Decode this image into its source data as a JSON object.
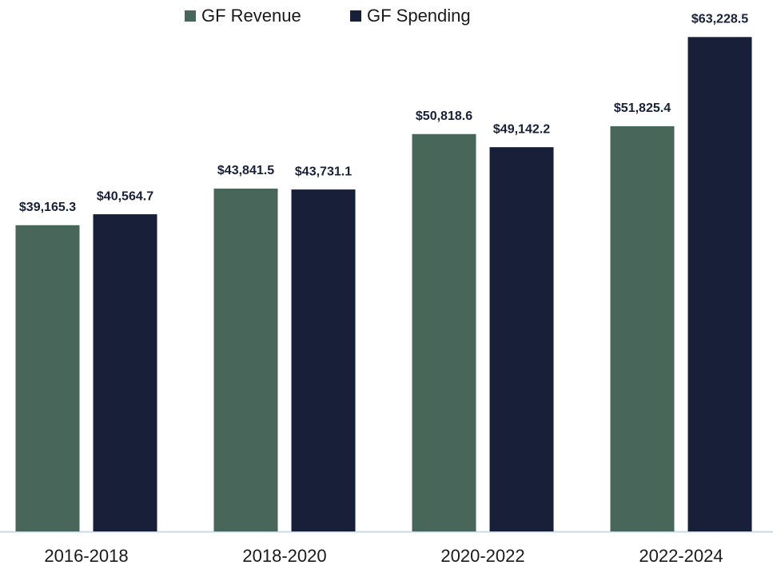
{
  "chart_data": {
    "type": "bar",
    "categories": [
      "2016-2018",
      "2018-2020",
      "2020-2022",
      "2022-2024"
    ],
    "series": [
      {
        "name": "GF Revenue",
        "color": "#48665a",
        "values": [
          39165.3,
          43841.5,
          50818.6,
          51825.4
        ],
        "value_labels": [
          "$39,165.3",
          "$43,841.5",
          "$50,818.6",
          "$51,825.4"
        ]
      },
      {
        "name": "GF Spending",
        "color": "#172038",
        "values": [
          40564.7,
          43731.1,
          49142.2,
          63228.5
        ],
        "value_labels": [
          "$40,564.7",
          "$43,731.1",
          "$49,142.2",
          "$63,228.5"
        ]
      }
    ],
    "ylim": [
      0,
      65000
    ],
    "legend": "top"
  }
}
